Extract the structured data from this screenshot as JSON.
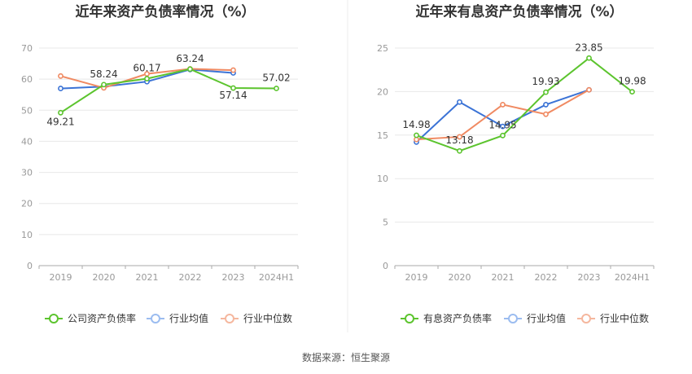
{
  "source_label": "数据来源：恒生聚源",
  "chart_data": [
    {
      "type": "line",
      "title": "近年来资产负债率情况（%）",
      "categories": [
        "2019",
        "2020",
        "2021",
        "2022",
        "2023",
        "2024H1"
      ],
      "ylim": [
        0,
        70
      ],
      "yticks": [
        0,
        10,
        20,
        30,
        40,
        50,
        60,
        70
      ],
      "grid": true,
      "legend_position": "bottom",
      "series": [
        {
          "name": "公司资产负债率",
          "color": "#5cc42e",
          "values": [
            49.21,
            58.24,
            60.17,
            63.24,
            57.14,
            57.02
          ],
          "labels": [
            "49.21",
            "58.24",
            "60.17",
            "63.24",
            "57.14",
            "57.02"
          ]
        },
        {
          "name": "行业均值",
          "color": "#3b73d6",
          "values": [
            57.0,
            57.6,
            59.2,
            63.1,
            62.0,
            null
          ]
        },
        {
          "name": "行业中位数",
          "color": "#f08a62",
          "values": [
            61.0,
            57.2,
            61.7,
            63.3,
            62.9,
            null
          ]
        }
      ]
    },
    {
      "type": "line",
      "title": "近年来有息资产负债率情况（%）",
      "categories": [
        "2019",
        "2020",
        "2021",
        "2022",
        "2023",
        "2024H1"
      ],
      "ylim": [
        0,
        25
      ],
      "yticks": [
        0,
        5,
        10,
        15,
        20,
        25
      ],
      "grid": true,
      "legend_position": "bottom",
      "series": [
        {
          "name": "有息资产负债率",
          "color": "#5cc42e",
          "values": [
            14.98,
            13.18,
            14.95,
            19.93,
            23.85,
            19.98
          ],
          "labels": [
            "14.98",
            "13.18",
            "14.95",
            "19.93",
            "23.85",
            "19.98"
          ]
        },
        {
          "name": "行业均值",
          "color": "#3b73d6",
          "values": [
            14.2,
            18.8,
            16.0,
            18.5,
            20.2,
            null
          ]
        },
        {
          "name": "行业中位数",
          "color": "#f08a62",
          "values": [
            14.5,
            14.8,
            18.5,
            17.4,
            20.2,
            null
          ]
        }
      ]
    }
  ]
}
